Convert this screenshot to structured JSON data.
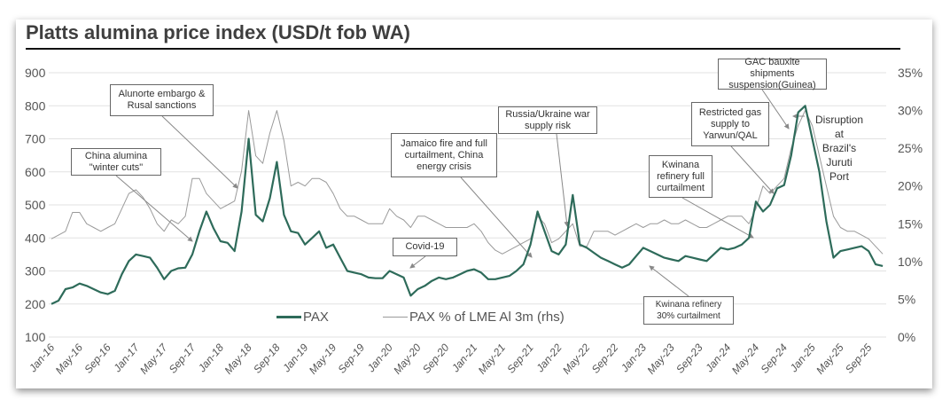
{
  "chart_data": {
    "type": "line",
    "title": "Platts alumina price index (USD/t fob WA)",
    "xlabel": "",
    "ylabel": "",
    "y_left": {
      "ticks": [
        100,
        200,
        300,
        400,
        500,
        600,
        700,
        800,
        900
      ],
      "range": [
        100,
        900
      ]
    },
    "y_right": {
      "ticks": [
        "0%",
        "5%",
        "10%",
        "15%",
        "20%",
        "25%",
        "30%",
        "35%"
      ],
      "range": [
        0,
        35
      ]
    },
    "x_tick_labels": [
      "Jan-16",
      "May-16",
      "Sep-16",
      "Jan-17",
      "May-17",
      "Sep-17",
      "Jan-18",
      "May-18",
      "Sep-18",
      "Jan-19",
      "May-19",
      "Sep-19",
      "Jan-20",
      "May-20",
      "Sep-20",
      "Jan-21",
      "May-21",
      "Sep-21",
      "Jan-22",
      "May-22",
      "Sep-22",
      "Jan-23",
      "May-23",
      "Sep-23",
      "Jan-24",
      "May-24",
      "Sep-24",
      "Jan-25",
      "May-25",
      "Sep-25"
    ],
    "x_start": "Jan-16",
    "x_step": "monthly",
    "grid": true,
    "legend_position": "bottom-center",
    "series": [
      {
        "name": "PAX",
        "axis": "left",
        "color": "#2e6b5a",
        "values": [
          200,
          210,
          245,
          250,
          262,
          255,
          245,
          235,
          230,
          240,
          290,
          330,
          350,
          345,
          340,
          310,
          275,
          300,
          308,
          310,
          350,
          420,
          480,
          430,
          390,
          385,
          360,
          480,
          700,
          470,
          450,
          520,
          630,
          470,
          420,
          415,
          380,
          400,
          420,
          370,
          380,
          340,
          300,
          295,
          290,
          280,
          278,
          278,
          300,
          290,
          280,
          225,
          245,
          255,
          270,
          280,
          275,
          280,
          290,
          300,
          305,
          295,
          275,
          275,
          280,
          285,
          300,
          320,
          380,
          480,
          420,
          360,
          350,
          380,
          530,
          380,
          370,
          355,
          340,
          330,
          320,
          310,
          320,
          345,
          370,
          360,
          350,
          340,
          335,
          330,
          345,
          340,
          335,
          330,
          350,
          370,
          365,
          370,
          380,
          400,
          510,
          480,
          500,
          550,
          560,
          650,
          780,
          800,
          700,
          600,
          450,
          340,
          360,
          365,
          370,
          375,
          360,
          320,
          315
        ]
      },
      {
        "name": "PAX % of LME Al 3m (rhs)",
        "axis": "right",
        "color": "#9a9a9a",
        "values": [
          13,
          13.5,
          14,
          16.5,
          16.5,
          15,
          14.5,
          14,
          14.5,
          15,
          17,
          19,
          19.5,
          18.5,
          17,
          15,
          14,
          15.5,
          15,
          16,
          21,
          21,
          19,
          18,
          17,
          17.5,
          18,
          22,
          30,
          24,
          23,
          27,
          30,
          26,
          20,
          20.5,
          20,
          21,
          21,
          20.5,
          19,
          17,
          16,
          16,
          15.5,
          15,
          15,
          15,
          17,
          16,
          15.5,
          14.5,
          16,
          16,
          15.5,
          15,
          14.5,
          14.5,
          14.5,
          14.5,
          15,
          14,
          12.5,
          11.5,
          11,
          11.5,
          12,
          12.5,
          13,
          16,
          15,
          12.5,
          13,
          14,
          15,
          12,
          12,
          14,
          14,
          14,
          13.5,
          14,
          14.5,
          15,
          14.5,
          15,
          15,
          15.5,
          15,
          15,
          15.5,
          15,
          14.5,
          14.5,
          15,
          15.5,
          16,
          16,
          16,
          15,
          17,
          20,
          19,
          20,
          21,
          25,
          28,
          30,
          28,
          24,
          20,
          16,
          14.5,
          14,
          14,
          13.5,
          13,
          12,
          11
        ]
      }
    ],
    "annotations": [
      {
        "text": "China alumina \"winter cuts\"",
        "target_month": "Oct-17",
        "target_value": 410
      },
      {
        "text": "Alunorte embargo & Rusal sanctions",
        "target_month": "Apr-18",
        "target_value": 550
      },
      {
        "text": "Covid-19",
        "target_month": "Mar-20",
        "target_value": 290
      },
      {
        "text": "Jamaico fire and full curtailment, China energy crisis",
        "target_month": "Sep-21",
        "target_value": 340
      },
      {
        "text": "Russia/Ukraine war supply risk",
        "target_month": "Feb-22",
        "target_value": 440
      },
      {
        "text": "Kwinana refinery 30% curtailment",
        "target_month": "Jan-23",
        "target_value": 310
      },
      {
        "text": "Kwinana refinery full curtailment",
        "target_month": "May-24",
        "target_value": 400
      },
      {
        "text": "Restricted gas supply to Yarwun/QAL",
        "target_month": "Jun-24",
        "target_value": 540
      },
      {
        "text": "GAC bauxite shipments suspension(Guinea)",
        "target_month": "Nov-24",
        "target_value": 740
      },
      {
        "text": "Disruption at Brazil's Juruti Port",
        "target_month": "Nov-24",
        "target_value": 770
      }
    ]
  },
  "legend": {
    "pax": "PAX",
    "ratio": "PAX % of LME Al 3m (rhs)"
  },
  "annotations_text": {
    "winter_cuts_1": "China alumina",
    "winter_cuts_2": "\"winter cuts\"",
    "alunorte_1": "Alunorte embargo &",
    "alunorte_2": "Rusal sanctions",
    "covid": "Covid-19",
    "jamaico_1": "Jamaico fire and full",
    "jamaico_2": "curtailment, China",
    "jamaico_3": "energy crisis",
    "russia_1": "Russia/Ukraine war",
    "russia_2": "supply risk",
    "kwinana30_1": "Kwinana refinery",
    "kwinana30_2": "30% curtailment",
    "kwinanafull_1": "Kwinana",
    "kwinanafull_2": "refinery full",
    "kwinanafull_3": "curtaiment",
    "gas_1": "Restricted gas",
    "gas_2": "supply to",
    "gas_3": "Yarwun/QAL",
    "gac_1": "GAC bauxite shipments",
    "gac_2": "suspension(Guinea)",
    "juruti_1": "Disruption at",
    "juruti_2": "Brazil's Juruti",
    "juruti_3": "Port"
  }
}
